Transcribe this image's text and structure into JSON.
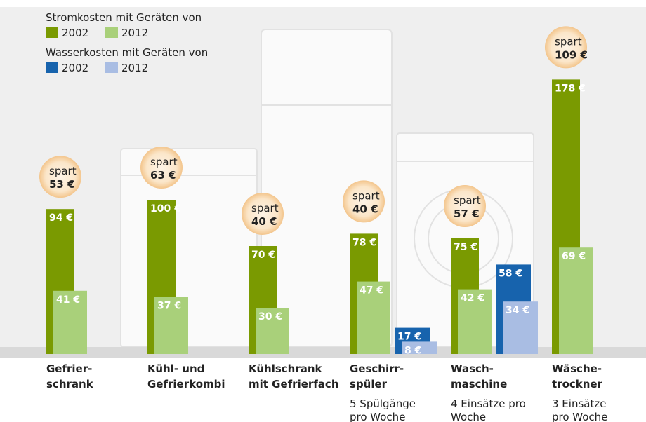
{
  "chart_data": {
    "type": "bar",
    "legend_titles": [
      "Stromkosten mit Geräten von",
      "Wasserkosten mit Geräten von"
    ],
    "categories": [
      [
        "Gefrier-",
        "schrank"
      ],
      [
        "Kühl- und",
        "Gefrierkombi"
      ],
      [
        "Kühlschrank",
        "mit Gefrierfach"
      ],
      [
        "Geschirr-",
        "spüler"
      ],
      [
        "Wasch-",
        "maschine"
      ],
      [
        "Wäsche-",
        "trockner"
      ]
    ],
    "category_notes": [
      null,
      null,
      null,
      [
        "5 Spülgänge",
        "pro Woche"
      ],
      [
        "4 Einsätze pro",
        "Woche"
      ],
      [
        "3 Einsätze",
        "pro Woche"
      ]
    ],
    "series": [
      {
        "name": "2002",
        "color": "#7a9a01",
        "values": [
          94,
          100,
          70,
          78,
          75,
          178
        ],
        "value_labels": [
          "94 €",
          "100 €",
          "70 €",
          "78 €",
          "75 €",
          "178 €"
        ]
      },
      {
        "name": "2012",
        "color": "#a9d07a",
        "values": [
          41,
          37,
          30,
          47,
          42,
          69
        ],
        "value_labels": [
          "41 €",
          "37 €",
          "30 €",
          "47 €",
          "42 €",
          "69 €"
        ]
      },
      {
        "name": "2002",
        "color": "#1763ad",
        "values": [
          null,
          null,
          null,
          17,
          58,
          null
        ],
        "value_labels": [
          null,
          null,
          null,
          "17 €",
          "58 €",
          null
        ]
      },
      {
        "name": "2012",
        "color": "#a9bde3",
        "values": [
          null,
          null,
          null,
          8,
          34,
          null
        ],
        "value_labels": [
          null,
          null,
          null,
          "8 €",
          "34 €",
          null
        ]
      }
    ],
    "savings": {
      "label": "spart",
      "values": [
        53,
        63,
        40,
        40,
        57,
        109
      ],
      "value_labels": [
        "53 €",
        "63 €",
        "40 €",
        "40 €",
        "57 €",
        "109 €"
      ]
    },
    "ylim": [
      0,
      180
    ]
  }
}
